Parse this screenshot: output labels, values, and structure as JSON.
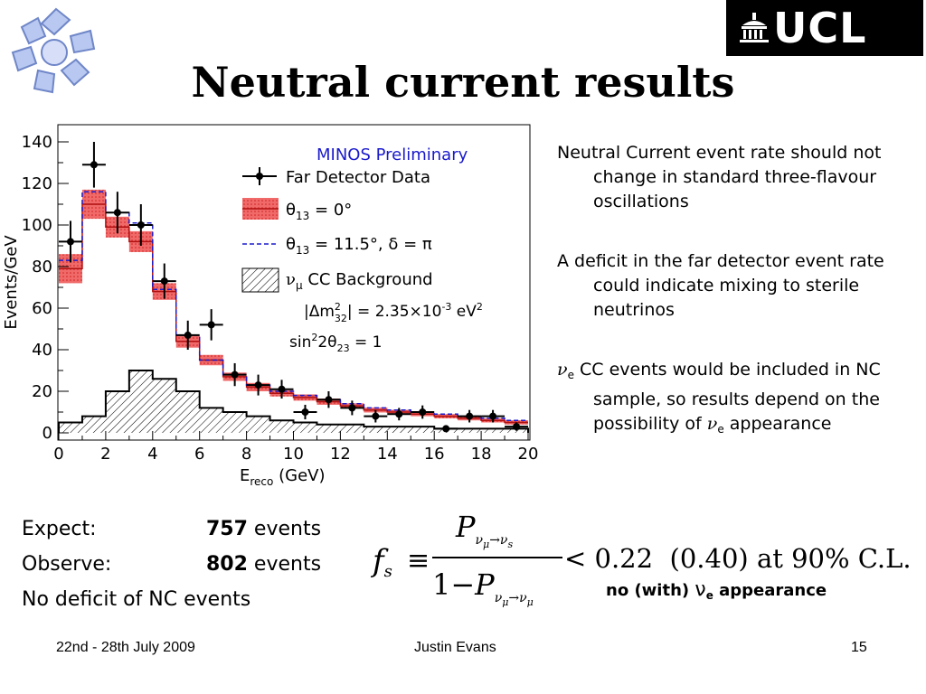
{
  "slide": {
    "title": "Neutral current results",
    "logo_text": "UCL",
    "bullets": [
      {
        "text": "Neutral Current event rate should not change in standard three-flavour oscillations"
      },
      {
        "text": "A deficit in the far detector event rate could indicate mixing to sterile neutrinos"
      },
      {
        "parts": [
          "ν",
          "e",
          " CC events would be included in NC sample, so results depend on the possibility of ",
          "ν",
          "e",
          " appearance"
        ]
      }
    ],
    "stats": {
      "expect_label": "Expect:",
      "expect_value": "757",
      "observe_label": "Observe:",
      "observe_value": "802",
      "unit": " events",
      "conclusion": "No deficit of NC events"
    },
    "formula": {
      "lhs": "f",
      "lhs_sub": "s",
      "equiv": "≡",
      "num": "P",
      "num_sub": "ν",
      "num_sub2": "μ",
      "num_sub3": "→ν",
      "num_sub4": "s",
      "den_one": "1−",
      "den": "P",
      "den_sub": "ν",
      "den_sub2": "μ",
      "den_sub3": "→ν",
      "den_sub4": "μ",
      "rhs": "< 0.22  (0.40) at 90% C.L.",
      "note_a": "no (with) ",
      "note_nu": "ν",
      "note_e": "e",
      "note_b": " appearance"
    },
    "footer": {
      "date": "22nd - 28th July 2009",
      "author": "Justin Evans",
      "page": "15"
    }
  },
  "chart_data": {
    "type": "bar",
    "title": "MINOS Preliminary",
    "xlabel": "E",
    "xlabel_sub": "reco",
    "xlabel_unit": " (GeV)",
    "ylabel": "Events/GeV",
    "xlim": [
      0,
      20
    ],
    "ylim": [
      0,
      140
    ],
    "xticks": [
      0,
      2,
      4,
      6,
      8,
      10,
      12,
      14,
      16,
      18,
      20
    ],
    "yticks": [
      0,
      20,
      40,
      60,
      80,
      100,
      120,
      140
    ],
    "bin_edges": [
      0,
      1,
      2,
      3,
      4,
      5,
      6,
      7,
      8,
      9,
      10,
      11,
      12,
      13,
      14,
      15,
      16,
      17,
      18,
      19,
      20
    ],
    "series": [
      {
        "name": "Far Detector Data",
        "kind": "points",
        "x": [
          0.5,
          1.5,
          2.5,
          3.5,
          4.5,
          5.5,
          6.5,
          7.5,
          8.5,
          9.5,
          10.5,
          11.5,
          12.5,
          13.5,
          14.5,
          15.5,
          16.5,
          17.5,
          18.5,
          19.5
        ],
        "values": [
          92,
          129,
          106,
          100,
          73,
          47,
          52,
          28,
          23,
          21,
          10,
          16,
          12,
          8,
          9,
          10,
          2,
          8,
          8,
          3
        ],
        "errors": [
          10,
          11,
          10,
          10,
          8.5,
          7,
          7.5,
          5.5,
          5,
          4.5,
          3.5,
          4,
          3.5,
          3,
          3,
          3.2,
          1.5,
          3,
          3,
          2
        ],
        "color": "#000000"
      },
      {
        "name_parts": [
          "θ",
          "13",
          " = 0°"
        ],
        "kind": "band",
        "values": [
          79,
          110,
          99,
          92,
          68,
          44,
          35,
          27,
          22,
          19,
          17,
          15,
          13,
          11,
          10,
          9,
          8,
          7,
          6,
          5
        ],
        "band_half_width": [
          7,
          7,
          5,
          5,
          4,
          3,
          2.5,
          2,
          2,
          1.5,
          1.5,
          1.5,
          1.2,
          1.2,
          1,
          1,
          1,
          1,
          1,
          1
        ],
        "color": "#e03030"
      },
      {
        "name_parts": [
          "θ",
          "13",
          " = 11.5°,  δ = π"
        ],
        "kind": "step",
        "values": [
          83,
          116,
          106,
          101,
          69,
          47,
          35,
          28,
          23,
          20,
          18,
          16,
          14,
          12,
          11,
          10,
          9,
          8,
          7,
          6
        ],
        "color": "#1a1acc"
      },
      {
        "name_parts": [
          "ν",
          "μ",
          " CC Background"
        ],
        "kind": "hatched",
        "values": [
          5,
          8,
          20,
          30,
          26,
          20,
          12,
          10,
          8,
          6,
          5,
          4,
          4,
          3,
          3,
          3,
          2,
          2,
          2,
          2
        ],
        "color": "#000000"
      }
    ],
    "annotations": [
      {
        "parts": [
          "|Δm",
          "2",
          "32",
          "| = 2.35×10",
          "-3",
          " eV",
          "2"
        ]
      },
      {
        "parts": [
          "sin",
          "2",
          "2θ",
          "23",
          " = 1"
        ]
      }
    ],
    "grid": false,
    "legend": "top-right"
  }
}
